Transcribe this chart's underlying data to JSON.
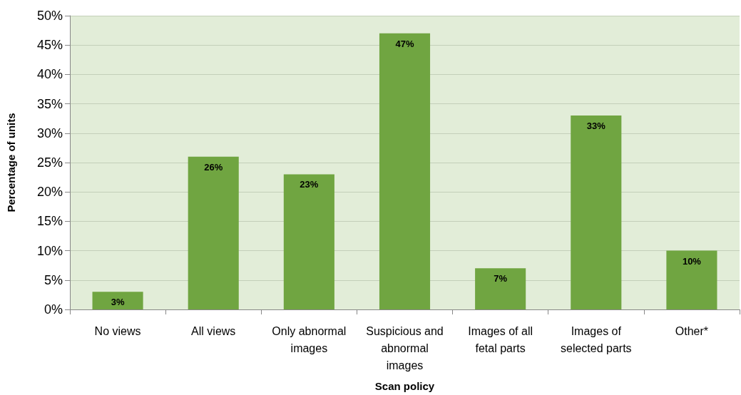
{
  "chart_data": {
    "type": "bar",
    "xlabel": "Scan policy",
    "ylabel": "Percentage of units",
    "categories": [
      "No views",
      "All views",
      "Only abnormal\nimages",
      "Suspicious and\nabnormal\nimages",
      "Images of all\nfetal parts",
      "Images of\nselected parts",
      "Other*"
    ],
    "values": [
      3,
      26,
      23,
      47,
      7,
      33,
      10
    ],
    "color": "#70a541",
    "value_labels": [
      "3%",
      "26%",
      "23%",
      "47%",
      "7%",
      "33%",
      "10%"
    ],
    "ylim": [
      0,
      50
    ],
    "yticks": [
      {
        "value": 0,
        "label": "0%"
      },
      {
        "value": 5,
        "label": "5%"
      },
      {
        "value": 10,
        "label": "10%"
      },
      {
        "value": 15,
        "label": "15%"
      },
      {
        "value": 20,
        "label": "20%"
      },
      {
        "value": 25,
        "label": "25%"
      },
      {
        "value": 30,
        "label": "30%"
      },
      {
        "value": 35,
        "label": "35%"
      },
      {
        "value": 40,
        "label": "40%"
      },
      {
        "value": 45,
        "label": "45%"
      },
      {
        "value": 50,
        "label": "50%"
      }
    ],
    "grid": "y"
  }
}
